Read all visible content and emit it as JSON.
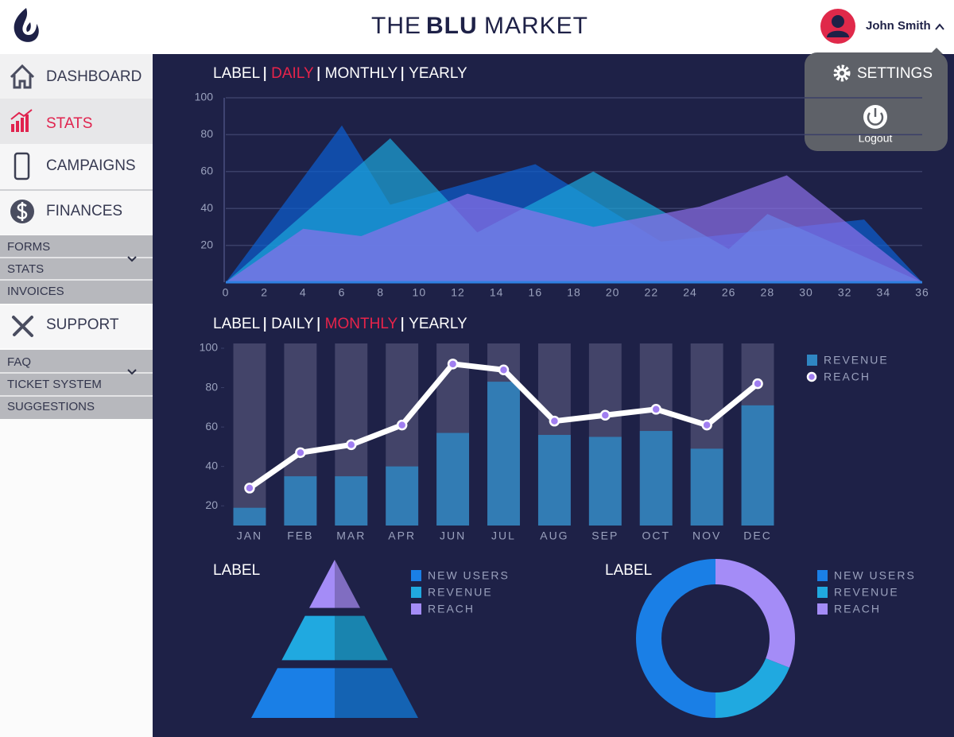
{
  "header": {
    "title_parts": [
      "THE",
      "BLU",
      "MARKET"
    ],
    "user": "John Smith"
  },
  "menu": {
    "settings": "SETTINGS",
    "logout": "Logout"
  },
  "sidebar": {
    "items": [
      "DASHBOARD",
      "STATS",
      "CAMPAIGNS",
      "FINANCES",
      "SUPPORT"
    ],
    "finances_submenu": [
      "FORMS",
      "STATS",
      "INVOICES"
    ],
    "support_submenu": [
      "FAQ",
      "TICKET SYSTEM",
      "SUGGESTIONS"
    ]
  },
  "chart_data": [
    {
      "type": "area",
      "tabs": [
        "LABEL",
        "DAILY",
        "MONTHLY",
        "YEARLY"
      ],
      "active_tab": 1,
      "xlim": [
        0,
        36
      ],
      "xticks": [
        0,
        2,
        4,
        6,
        8,
        10,
        12,
        14,
        16,
        18,
        20,
        22,
        24,
        26,
        28,
        30,
        32,
        34,
        36
      ],
      "ylim": [
        0,
        100
      ],
      "yticks": [
        20,
        40,
        60,
        80,
        100
      ],
      "grid": true,
      "series": [
        {
          "color": "#0c5fd2",
          "x": [
            0,
            6,
            8.5,
            16,
            22.5,
            33,
            36
          ],
          "values": [
            0,
            85,
            42,
            64,
            22,
            34,
            0
          ]
        },
        {
          "color": "#1ba6dc",
          "x": [
            0,
            8.5,
            13,
            19,
            26,
            28,
            36
          ],
          "values": [
            0,
            78,
            27,
            60,
            18,
            37,
            0
          ]
        },
        {
          "color": "#8c70ea",
          "x": [
            0,
            4,
            7,
            12.5,
            19,
            24.5,
            29,
            36
          ],
          "values": [
            0,
            29,
            25,
            48,
            30,
            41,
            58,
            0
          ]
        }
      ]
    },
    {
      "type": "combo",
      "tabs": [
        "LABEL",
        "DAILY",
        "MONTHLY",
        "YEARLY"
      ],
      "active_tab": 2,
      "categories": [
        "JAN",
        "FEB",
        "MAR",
        "APR",
        "JUN",
        "JUL",
        "AUG",
        "SEP",
        "OCT",
        "NOV",
        "DEC"
      ],
      "ylim": [
        10,
        100
      ],
      "yticks": [
        20,
        40,
        60,
        80,
        100
      ],
      "series": [
        {
          "name": "REVENUE",
          "color": "#2f86c2",
          "values": [
            19,
            35,
            35,
            40,
            57,
            83,
            56,
            55,
            58,
            49,
            71
          ]
        },
        {
          "name": "REACH",
          "color": "#ffffff",
          "marker_color": "#a07ef0",
          "values": [
            29,
            47,
            51,
            61,
            92,
            89,
            63,
            66,
            69,
            61,
            82
          ]
        }
      ]
    },
    {
      "type": "pyramid",
      "title": "LABEL",
      "categories": [
        "NEW USERS",
        "REVENUE",
        "REACH"
      ],
      "values": [
        34,
        33,
        33
      ],
      "colors": [
        "#1a7fe6",
        "#20a9e0",
        "#a48cf7"
      ]
    },
    {
      "type": "donut",
      "title": "LABEL",
      "categories": [
        "NEW USERS",
        "REVENUE",
        "REACH"
      ],
      "values": [
        50,
        19,
        31
      ],
      "colors": [
        "#1a7fe6",
        "#20a9e0",
        "#a48cf7"
      ]
    }
  ]
}
